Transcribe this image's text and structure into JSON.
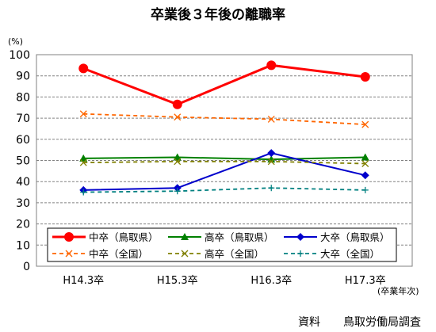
{
  "title": "卒業後３年後の離職率",
  "y_unit": "(%)",
  "x_suffix": "(卒業年次)",
  "source_label": "資料",
  "source_value": "鳥取労働局調査",
  "chart_data": {
    "type": "line",
    "title": "卒業後３年後の離職率",
    "xlabel": "(卒業年次)",
    "ylabel": "(%)",
    "categories": [
      "H14.3卒",
      "H15.3卒",
      "H16.3卒",
      "H17.3卒"
    ],
    "ylim": [
      0,
      100
    ],
    "yticks": [
      0,
      10,
      20,
      30,
      40,
      50,
      60,
      70,
      80,
      90,
      100
    ],
    "grid": true,
    "legend_position": "bottom-inside",
    "series": [
      {
        "name": "中卒（鳥取県）",
        "values": [
          93.5,
          76.5,
          95,
          89.5
        ],
        "color": "#ff0000",
        "style": "solid-thick",
        "marker": "circle"
      },
      {
        "name": "高卒（鳥取県）",
        "values": [
          51,
          51.5,
          50.5,
          51.5
        ],
        "color": "#008000",
        "style": "solid",
        "marker": "triangle"
      },
      {
        "name": "大卒（鳥取県）",
        "values": [
          36,
          37,
          53.5,
          43
        ],
        "color": "#0000cc",
        "style": "solid",
        "marker": "diamond"
      },
      {
        "name": "中卒（全国）",
        "values": [
          72,
          70.5,
          69.5,
          67
        ],
        "color": "#ff6600",
        "style": "dashed",
        "marker": "x"
      },
      {
        "name": "高卒（全国）",
        "values": [
          49,
          49.5,
          49.5,
          48.5
        ],
        "color": "#808000",
        "style": "dashed",
        "marker": "x"
      },
      {
        "name": "大卒（全国）",
        "values": [
          35,
          35.5,
          37,
          36
        ],
        "color": "#008080",
        "style": "dashed",
        "marker": "plus"
      }
    ]
  }
}
